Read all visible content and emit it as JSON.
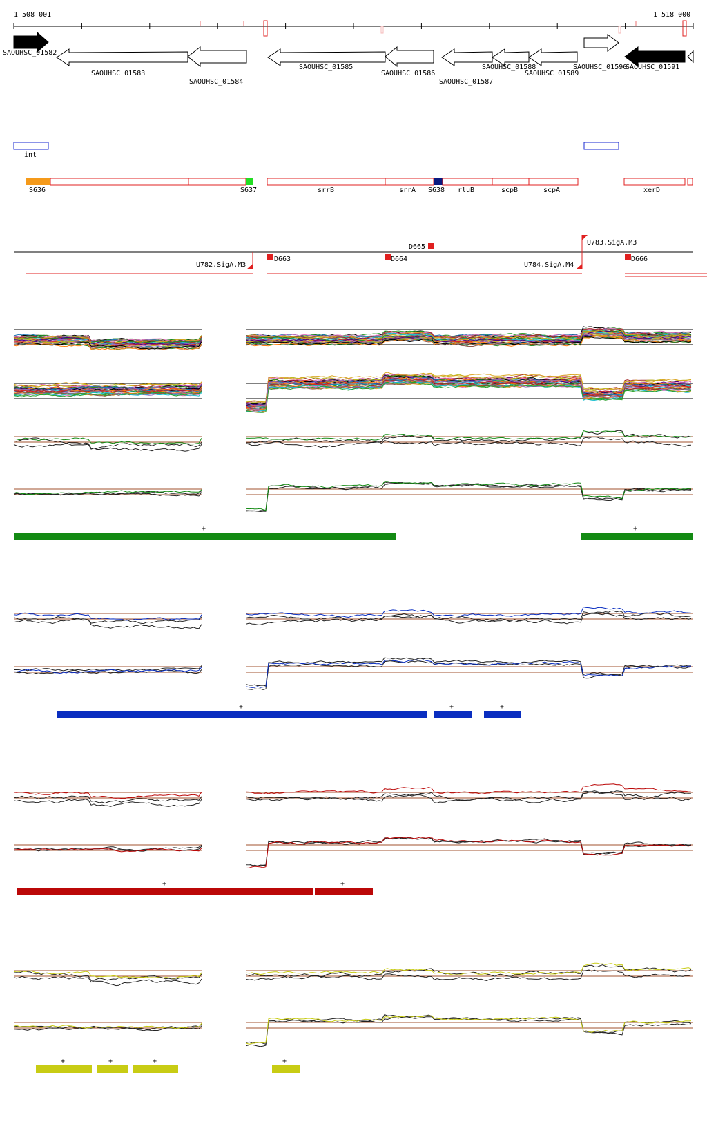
{
  "ruler": {
    "start_label": "1 508 001",
    "end_label": "1 518 000"
  },
  "genes": [
    {
      "label": "SAOUHSC_01582",
      "strand": "+",
      "filled": true
    },
    {
      "label": "SAOUHSC_01583",
      "strand": "-",
      "filled": false
    },
    {
      "label": "SAOUHSC_01584",
      "strand": "-",
      "filled": false
    },
    {
      "label": "SAOUHSC_01585",
      "strand": "-",
      "filled": false
    },
    {
      "label": "SAOUHSC_01586",
      "strand": "-",
      "filled": false
    },
    {
      "label": "SAOUHSC_01587",
      "strand": "-",
      "filled": false
    },
    {
      "label": "SAOUHSC_01588",
      "strand": "-",
      "filled": false
    },
    {
      "label": "SAOUHSC_01589",
      "strand": "-",
      "filled": false
    },
    {
      "label": "SAOUHSC_01590",
      "strand": "+",
      "filled": false
    },
    {
      "label": "SAOUHSC_01591",
      "strand": "-",
      "filled": true
    }
  ],
  "annotation_blue": [
    {
      "label": "int"
    }
  ],
  "segments": [
    {
      "label": "S636",
      "color": "#f59a1a"
    },
    {
      "label": "S637",
      "color": "#22dd22"
    },
    {
      "label": "srrB",
      "color": ""
    },
    {
      "label": "srrA",
      "color": ""
    },
    {
      "label": "S638",
      "color": "#0a1a80"
    },
    {
      "label": "rluB",
      "color": ""
    },
    {
      "label": "scpB",
      "color": ""
    },
    {
      "label": "scpA",
      "color": ""
    },
    {
      "label": "xerD",
      "color": ""
    }
  ],
  "promoters": [
    {
      "label": "U782.SigA.M3"
    },
    {
      "label": "D663"
    },
    {
      "label": "D664"
    },
    {
      "label": "D665"
    },
    {
      "label": "U784.SigA.M4"
    },
    {
      "label": "U783.SigA.M3"
    },
    {
      "label": "D666"
    }
  ],
  "plus_marker": "+",
  "condition_colors": {
    "green": "#138a13",
    "blue": "#0a2ec0",
    "red": "#bb0808",
    "yellow": "#c8cc14"
  },
  "line_colors": {
    "ruler": "#000000",
    "feature_border": "#e02020",
    "blue_border": "#1a2ad0",
    "reference": "#a0522d",
    "trace_dark": "#222222"
  }
}
